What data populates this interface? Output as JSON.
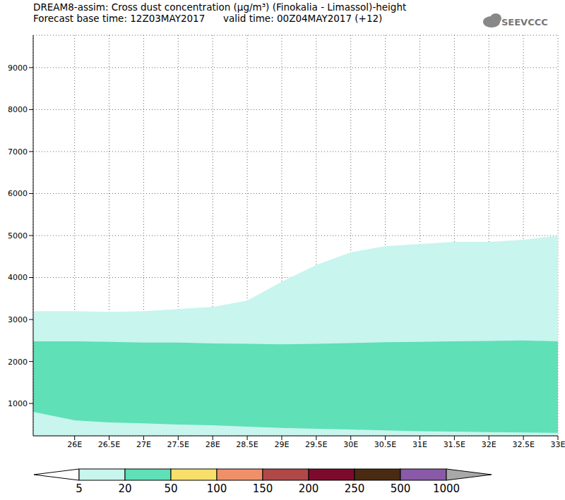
{
  "chart_data": {
    "type": "area",
    "title": "DREAM8-assim: Cross dust concentration (μg/m³) (Finokalia - Limassol)-height",
    "subtitle": "Forecast base time: 12Z03MAY2017      valid time: 00Z04MAY2017 (+12)",
    "logo": "SEEVCCC",
    "x": [
      25.4,
      26,
      26.5,
      27,
      27.5,
      28,
      28.5,
      29,
      29.5,
      30,
      30.5,
      31,
      31.5,
      32,
      32.5,
      33
    ],
    "series": [
      {
        "color": "#c8f5ee",
        "lower": [
          230,
          230,
          230,
          230,
          230,
          230,
          230,
          230,
          230,
          230,
          230,
          230,
          230,
          230,
          230,
          230
        ],
        "upper": [
          3200,
          3200,
          3180,
          3200,
          3250,
          3300,
          3450,
          3900,
          4300,
          4600,
          4750,
          4800,
          4850,
          4850,
          4900,
          5000
        ]
      },
      {
        "color": "#5fe0b6",
        "lower": [
          800,
          600,
          550,
          530,
          500,
          480,
          450,
          420,
          400,
          380,
          360,
          340,
          330,
          320,
          310,
          300
        ],
        "upper": [
          2480,
          2480,
          2470,
          2450,
          2450,
          2430,
          2420,
          2410,
          2420,
          2440,
          2460,
          2470,
          2480,
          2490,
          2500,
          2480
        ]
      }
    ],
    "xlim": [
      25.4,
      33
    ],
    "xticks": [
      {
        "value": 26,
        "label": "26E"
      },
      {
        "value": 26.5,
        "label": "26.5E"
      },
      {
        "value": 27,
        "label": "27E"
      },
      {
        "value": 27.5,
        "label": "27.5E"
      },
      {
        "value": 28,
        "label": "28E"
      },
      {
        "value": 28.5,
        "label": "28.5E"
      },
      {
        "value": 29,
        "label": "29E"
      },
      {
        "value": 29.5,
        "label": "29.5E"
      },
      {
        "value": 30,
        "label": "30E"
      },
      {
        "value": 30.5,
        "label": "30.5E"
      },
      {
        "value": 31,
        "label": "31E"
      },
      {
        "value": 31.5,
        "label": "31.5E"
      },
      {
        "value": 32,
        "label": "32E"
      },
      {
        "value": 32.5,
        "label": "32.5E"
      },
      {
        "value": 33,
        "label": "33E"
      }
    ],
    "ylim": [
      230,
      9770
    ],
    "yticks": [
      1000,
      2000,
      3000,
      4000,
      5000,
      6000,
      7000,
      8000,
      9000
    ],
    "grid": true,
    "colorbar": {
      "ticks": [
        5,
        20,
        50,
        100,
        150,
        200,
        250,
        500,
        1000
      ],
      "colors": [
        "#ffffff",
        "#c8f5ee",
        "#5fe0b6",
        "#f6e06a",
        "#f09068",
        "#b04848",
        "#7c0a2c",
        "#4a2a12",
        "#8a5aa8",
        "#a8a8a8"
      ]
    }
  }
}
